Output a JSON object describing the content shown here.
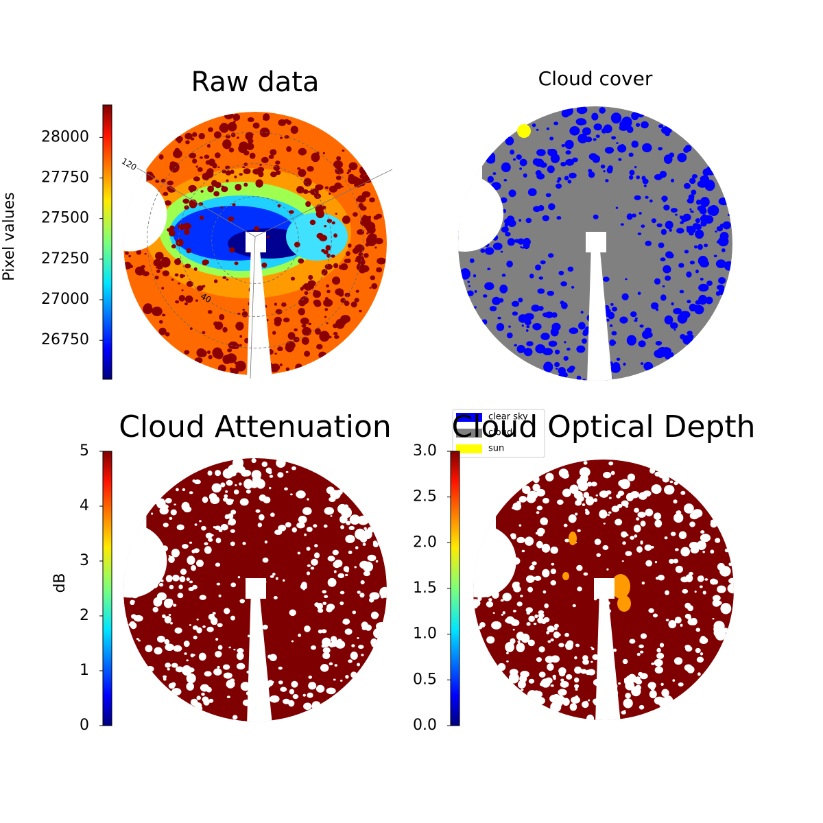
{
  "chart_data": [
    {
      "type": "image",
      "title": "Raw data",
      "colormap": "jet",
      "colorbar_label": "Pixel values",
      "ylim": [
        26510,
        28200
      ],
      "yticks": [
        26750,
        27000,
        27250,
        27500,
        27750,
        28000
      ],
      "annotations": [
        "120",
        "40"
      ]
    },
    {
      "type": "image",
      "title": "Cloud cover",
      "legend": "lower left",
      "series": [
        {
          "name": "clear sky",
          "color": "#0000ff"
        },
        {
          "name": "cloud",
          "color": "#808080"
        },
        {
          "name": "sun",
          "color": "#ffff00"
        }
      ]
    },
    {
      "type": "image",
      "title": "Cloud Attenuation",
      "colormap": "jet",
      "colorbar_label": "dB",
      "ylim": [
        0,
        5
      ],
      "yticks": [
        0,
        1,
        2,
        3,
        4,
        5
      ]
    },
    {
      "type": "image",
      "title": "Cloud Optical Depth",
      "colormap": "jet",
      "ylim": [
        0,
        3
      ],
      "yticks": [
        {
          "value": 0,
          "label": "0.0"
        },
        {
          "value": 0.5,
          "label": "0.5"
        },
        {
          "value": 1,
          "label": "1.0"
        },
        {
          "value": 1.5,
          "label": "1.5"
        },
        {
          "value": 2,
          "label": "2.0"
        },
        {
          "value": 2.5,
          "label": "2.5"
        },
        {
          "value": 3,
          "label": "3.0"
        }
      ]
    }
  ]
}
